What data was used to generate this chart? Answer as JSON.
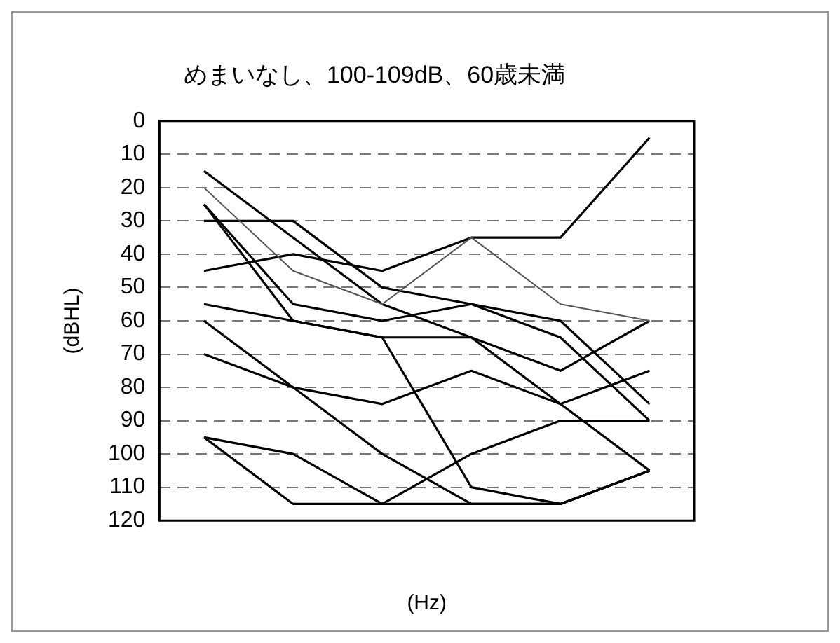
{
  "chart_data": {
    "type": "line",
    "title": "めまいなし、100-109dB、60歳未満",
    "xlabel": "(Hz)",
    "ylabel": "(dBHL)",
    "categories": [
      null,
      null,
      null,
      null,
      null,
      null
    ],
    "series": [
      {
        "color": "#555555",
        "values": [
          20,
          45,
          55,
          35,
          55,
          60
        ]
      },
      {
        "color": "#000000",
        "values": [
          45,
          40,
          45,
          35,
          35,
          5
        ]
      },
      {
        "color": "#000000",
        "values": [
          15,
          35,
          55,
          65,
          85,
          105
        ]
      },
      {
        "color": "#000000",
        "values": [
          30,
          30,
          50,
          55,
          60,
          85
        ]
      },
      {
        "color": "#000000",
        "values": [
          25,
          55,
          60,
          55,
          65,
          90
        ]
      },
      {
        "color": "#000000",
        "values": [
          25,
          60,
          65,
          110,
          115,
          105
        ]
      },
      {
        "color": "#000000",
        "values": [
          55,
          60,
          65,
          65,
          75,
          60
        ]
      },
      {
        "color": "#000000",
        "values": [
          70,
          80,
          85,
          75,
          85,
          75
        ]
      },
      {
        "color": "#000000",
        "values": [
          60,
          80,
          100,
          115,
          115,
          105
        ]
      },
      {
        "color": "#000000",
        "values": [
          95,
          100,
          115,
          115,
          115,
          105
        ]
      },
      {
        "color": "#000000",
        "values": [
          95,
          115,
          115,
          100,
          90,
          90
        ]
      }
    ],
    "ylim": [
      120,
      0
    ],
    "yticks": [
      0,
      10,
      20,
      30,
      40,
      50,
      60,
      70,
      80,
      90,
      100,
      110,
      120
    ],
    "grid": "y",
    "legend": false,
    "marker": "none",
    "line_style": "solid"
  }
}
